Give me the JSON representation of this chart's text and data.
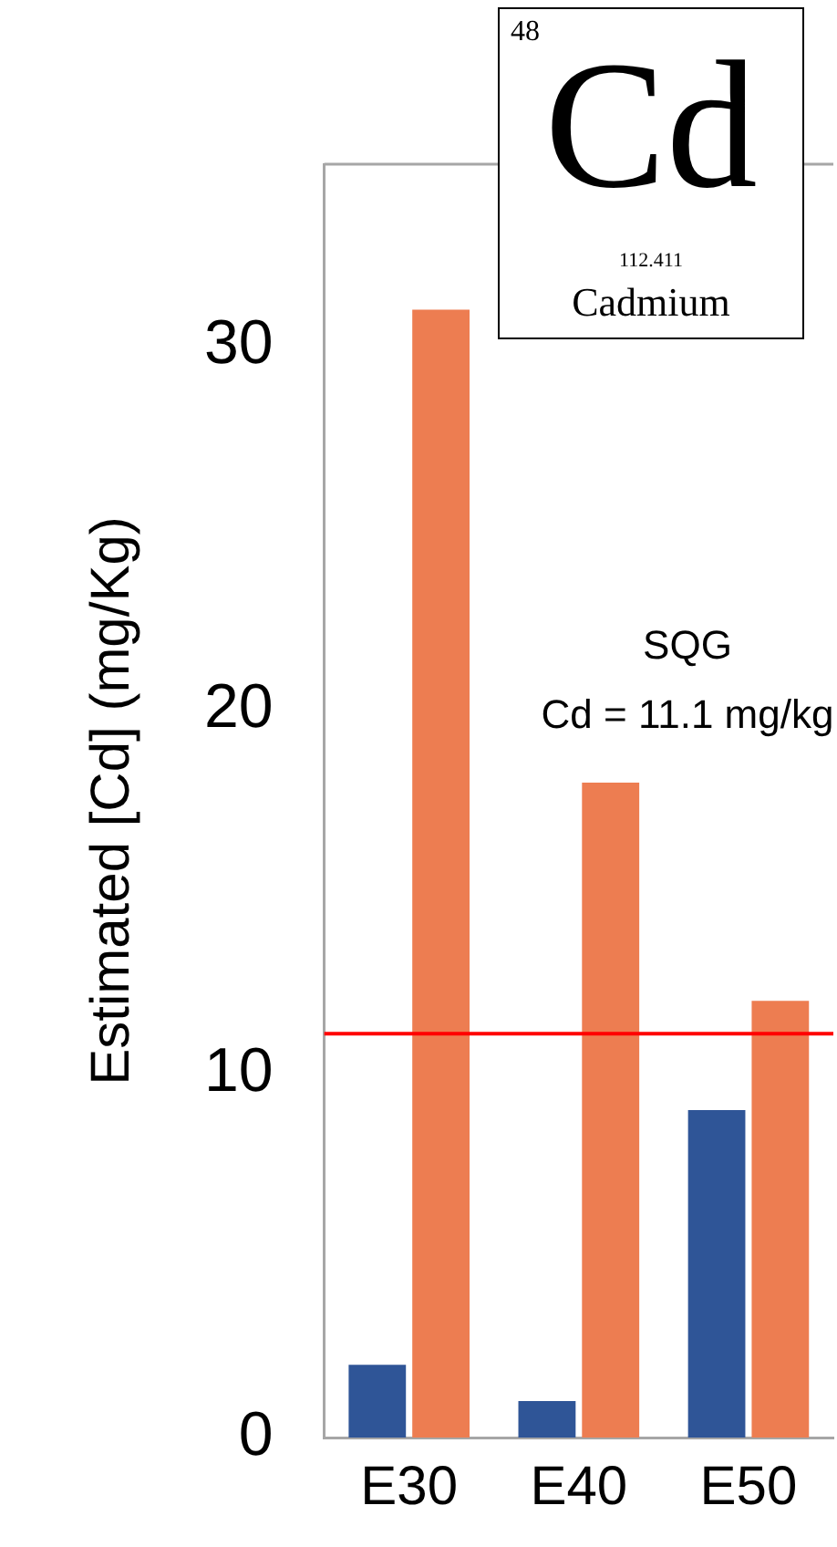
{
  "chart_data": {
    "type": "bar",
    "ylabel": "Estimated [Cd] (mg/Kg)",
    "categories": [
      "E30",
      "E40",
      "E50"
    ],
    "series": [
      {
        "color": "#2f5597",
        "values": [
          2,
          1,
          9
        ]
      },
      {
        "color": "#ed7d51",
        "values": [
          31,
          18,
          12
        ]
      }
    ],
    "ylim": [
      0,
      35
    ],
    "yticks": [
      0,
      10,
      20,
      30
    ],
    "grid": false,
    "legend": false,
    "ref_lines": [
      {
        "axis": "y",
        "value": 11.1,
        "color": "#ff0000"
      }
    ],
    "annotations": [
      "48",
      "Cd",
      "112.411",
      "Cadmium",
      "SQG\nCd = 11.1 mg/kg"
    ]
  }
}
